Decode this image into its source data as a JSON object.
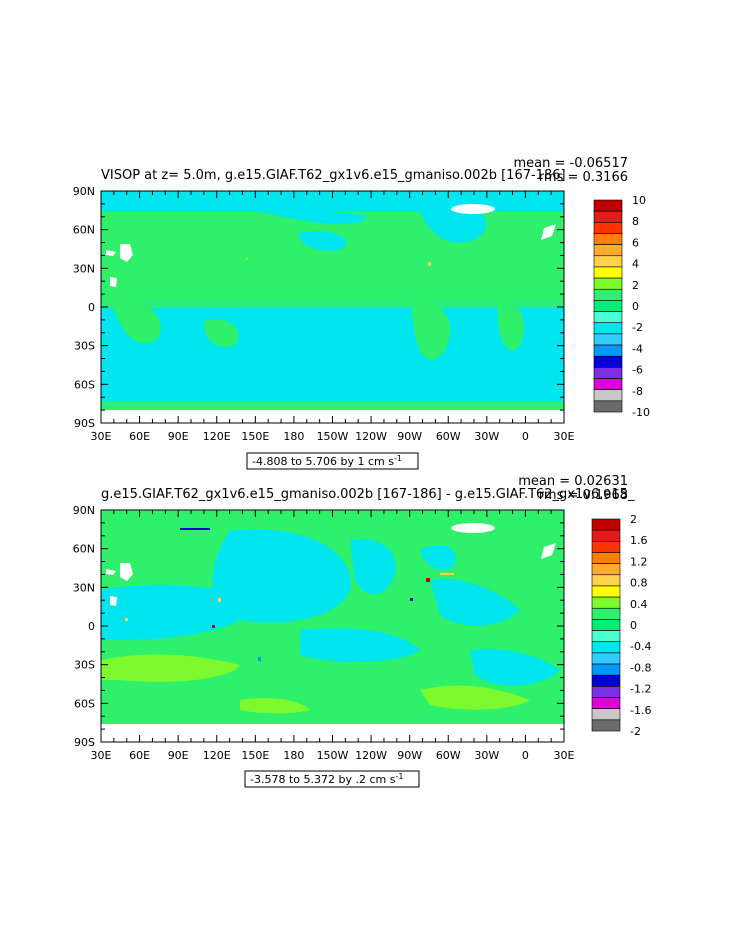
{
  "chart_data": [
    {
      "type": "heatmap",
      "title": "VISOP at z=    5.0m, g.e15.GIAF.T62_gx1v6.e15_gmaniso.002b [167-186]",
      "stats": {
        "mean": "mean = -0.06517",
        "rms": "rms = 0.3166"
      },
      "x_ticks": [
        "30E",
        "60E",
        "90E",
        "120E",
        "150E",
        "180",
        "150W",
        "120W",
        "90W",
        "60W",
        "30W",
        "0",
        "30E"
      ],
      "y_ticks": [
        "90N",
        "60N",
        "30N",
        "0",
        "30S",
        "60S",
        "90S"
      ],
      "range_label": "-4.808 to 5.706 by 1 cm s",
      "range_exp": "-1",
      "colorbar": {
        "labels": [
          "10",
          "8",
          "6",
          "4",
          "2",
          "0",
          "-2",
          "-4",
          "-6",
          "-8",
          "-10"
        ],
        "colors": [
          "#c00000",
          "#e31a1c",
          "#ff3300",
          "#ff8000",
          "#ffaa33",
          "#ffd24d",
          "#ffff00",
          "#7dfa2d",
          "#2ef06a",
          "#00ee77",
          "#4dffd2",
          "#00e5ee",
          "#33ccff",
          "#0099ff",
          "#0000dd",
          "#7b2ee3",
          "#dd00dd",
          "#c8c8c8",
          "#6b6b6b"
        ]
      }
    },
    {
      "type": "heatmap",
      "title": "g.e15.GIAF.T62_gx1v6.e15_gmaniso.002b [167-186] - g.e15.GIAF.T62_gx1v6.e15_",
      "stats": {
        "mean": "mean = 0.02631",
        "rms": "rms = 0.1968"
      },
      "x_ticks": [
        "30E",
        "60E",
        "90E",
        "120E",
        "150E",
        "180",
        "150W",
        "120W",
        "90W",
        "60W",
        "30W",
        "0",
        "30E"
      ],
      "y_ticks": [
        "90N",
        "60N",
        "30N",
        "0",
        "30S",
        "60S",
        "90S"
      ],
      "range_label": "-3.578 to 5.372 by .2 cm s",
      "range_exp": "-1",
      "colorbar": {
        "labels": [
          "2",
          "1.6",
          "1.2",
          "0.8",
          "0.4",
          "0",
          "-0.4",
          "-0.8",
          "-1.2",
          "-1.6",
          "-2"
        ],
        "colors": [
          "#c00000",
          "#e31a1c",
          "#ff3300",
          "#ff8000",
          "#ffaa33",
          "#ffd24d",
          "#ffff00",
          "#7dfa2d",
          "#2ef06a",
          "#00ee77",
          "#4dffd2",
          "#00e5ee",
          "#33ccff",
          "#0099ff",
          "#0000dd",
          "#7b2ee3",
          "#dd00dd",
          "#c8c8c8",
          "#6b6b6b"
        ]
      }
    }
  ],
  "colors": {
    "land": "#ffffff",
    "ocean_main": "#00e5ee",
    "zero_band": "#2ef06a",
    "positive": "#7dfa2d",
    "highlight": "#ffd24d"
  }
}
